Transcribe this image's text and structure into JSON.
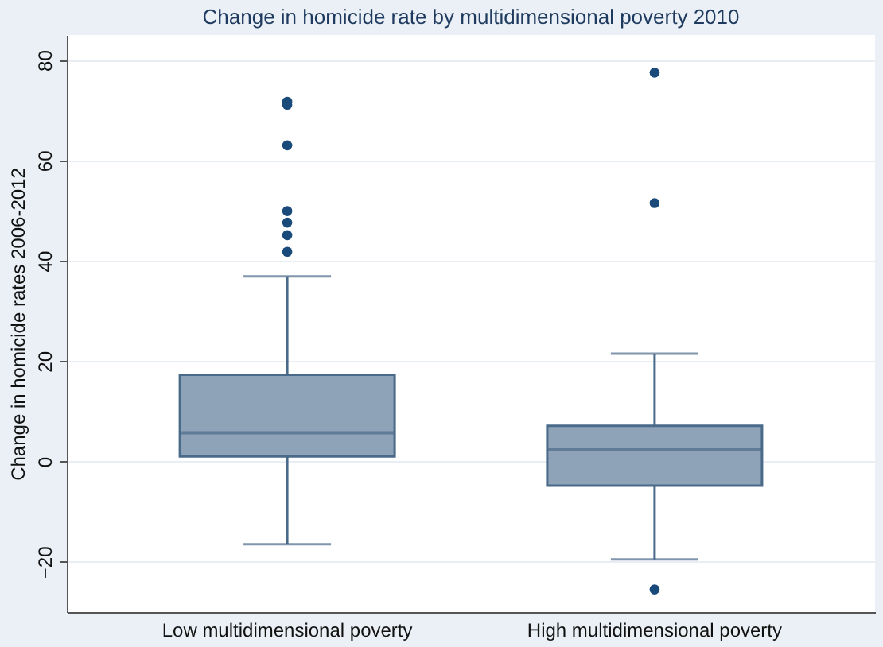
{
  "chart_data": {
    "type": "box",
    "title": "Change in homicide rate by multidimensional poverty 2010",
    "ylabel": "Change in homicide rates 2006-2012",
    "categories": [
      "Low multidimensional poverty",
      "High multidimensional poverty"
    ],
    "boxes": [
      {
        "low": -16.5,
        "q1": 1.0,
        "median": 5.7,
        "q3": 17.3,
        "high": 36.9,
        "outliers": [
          71.7,
          71.1,
          63,
          49.9,
          47.6,
          45.1,
          41.8
        ]
      },
      {
        "low": -19.5,
        "q1": -4.8,
        "median": 2.3,
        "q3": 7.1,
        "high": 21.5,
        "outliers": [
          77.5,
          51.5,
          -25.5
        ]
      }
    ],
    "color": "#8fa3b8",
    "ylim": [
      -30,
      85
    ],
    "yticks": [
      -20,
      0,
      20,
      40,
      60,
      80
    ],
    "grid": "y"
  }
}
